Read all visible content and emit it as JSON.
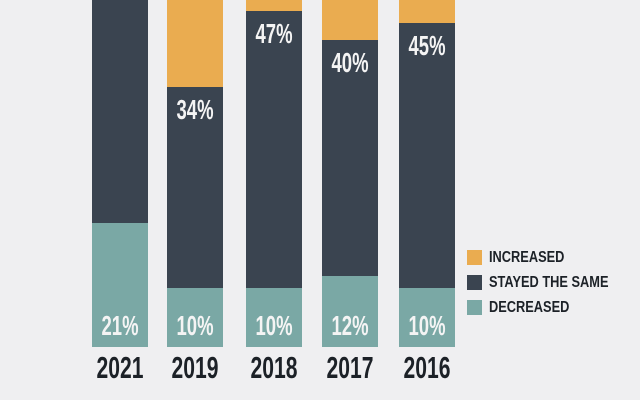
{
  "background": "#EFEFF1",
  "text_colors": {
    "axis_label": "#1C2127",
    "legend_label": "#1C2127",
    "value_label": "#F4F4F4"
  },
  "chart_data": {
    "type": "bar",
    "subtype": "stacked-vertical",
    "title": "",
    "xlabel": "",
    "ylabel": "",
    "value_unit": "%",
    "categories": [
      "2021",
      "2019",
      "2018",
      "2017",
      "2016"
    ],
    "series": [
      {
        "name": "INCREASED",
        "color": "#EAAC50",
        "values": [
          0,
          56,
          43,
          48,
          45
        ],
        "value_labels": [
          "",
          "",
          "",
          "",
          ""
        ]
      },
      {
        "name": "STAYED THE SAME",
        "color": "#3A4450",
        "values": [
          79,
          34,
          47,
          40,
          45
        ],
        "value_labels": [
          "",
          "34%",
          "47%",
          "40%",
          "45%"
        ]
      },
      {
        "name": "DECREASED",
        "color": "#7AA8A5",
        "values": [
          21,
          10,
          10,
          12,
          10
        ],
        "value_labels": [
          "21%",
          "10%",
          "10%",
          "12%",
          "10%"
        ]
      }
    ],
    "legend": {
      "position": "right",
      "entries": [
        "INCREASED",
        "STAYED THE SAME",
        "DECREASED"
      ]
    },
    "notes": "Bars are cropped by the top edge of the screenshot; segments without visible percentage labels are estimated assuming each year totals 100%."
  }
}
